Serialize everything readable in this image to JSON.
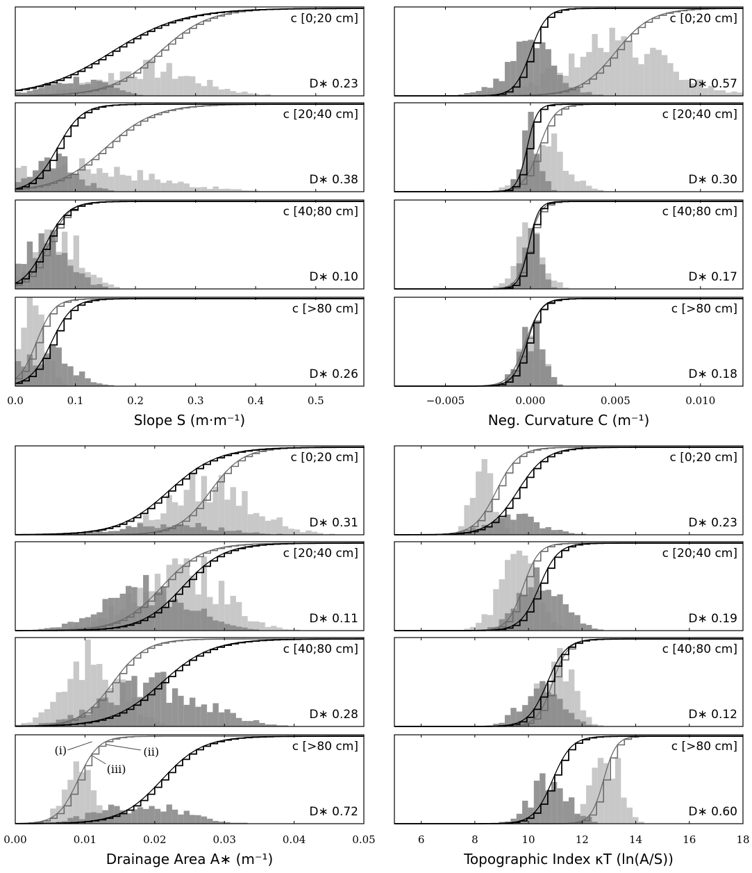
{
  "chart_data": [
    {
      "type": "histogram",
      "group": "slope",
      "xlabel": "Slope S (m·m⁻¹)",
      "xlim": [
        0,
        0.58
      ],
      "xticks": [
        0.0,
        0.1,
        0.2,
        0.3,
        0.4,
        0.5
      ],
      "xtick_labels": [
        "0.0",
        "0.1",
        "0.2",
        "0.3",
        "0.4",
        "0.5"
      ],
      "panels": [
        {
          "class_label": "c [0;20 cm]",
          "d_stat": "D∗ 0.23",
          "light": {
            "center": 0.22,
            "spread": 0.08,
            "peak": 0.3
          },
          "dark": {
            "center": 0.1,
            "spread": 0.05,
            "peak": 0.18
          },
          "cdf_light": {
            "center": 0.24,
            "spread": 0.07
          },
          "cdf_dark": {
            "center": 0.16,
            "spread": 0.1
          }
        },
        {
          "class_label": "c [20;40 cm]",
          "d_stat": "D∗ 0.38",
          "light": {
            "center": 0.1,
            "spread": 0.12,
            "peak": 0.28
          },
          "dark": {
            "center": 0.06,
            "spread": 0.04,
            "peak": 0.34
          },
          "cdf_light": {
            "center": 0.15,
            "spread": 0.07
          },
          "cdf_dark": {
            "center": 0.07,
            "spread": 0.035
          }
        },
        {
          "class_label": "c [40;80 cm]",
          "d_stat": "D∗ 0.10",
          "light": {
            "center": 0.07,
            "spread": 0.04,
            "peak": 0.6
          },
          "dark": {
            "center": 0.05,
            "spread": 0.04,
            "peak": 0.5
          },
          "cdf_light": {
            "center": 0.055,
            "spread": 0.03
          },
          "cdf_dark": {
            "center": 0.05,
            "spread": 0.032
          }
        },
        {
          "class_label": "c [>80 cm]",
          "d_stat": "D∗ 0.26",
          "light": {
            "center": 0.03,
            "spread": 0.02,
            "peak": 0.8
          },
          "dark": {
            "center": 0.05,
            "spread": 0.04,
            "peak": 0.4
          },
          "cdf_light": {
            "center": 0.035,
            "spread": 0.025
          },
          "cdf_dark": {
            "center": 0.06,
            "spread": 0.03
          }
        }
      ]
    },
    {
      "type": "histogram",
      "group": "curvature",
      "xlabel": "Neg. Curvature C (m⁻¹)",
      "xlim": [
        -0.008,
        0.0125
      ],
      "xticks": [
        -0.005,
        0.0,
        0.005,
        0.01
      ],
      "xtick_labels": [
        "−0.005",
        "0.000",
        "0.005",
        "0.010"
      ],
      "panels": [
        {
          "class_label": "c [0;20 cm]",
          "d_stat": "D∗ 0.57",
          "light": {
            "center": 0.005,
            "spread": 0.003,
            "peak": 0.55
          },
          "dark": {
            "center": 0.0,
            "spread": 0.0015,
            "peak": 0.5
          },
          "cdf_light": {
            "center": 0.005,
            "spread": 0.0018
          },
          "cdf_dark": {
            "center": 0.0,
            "spread": 0.0008
          }
        },
        {
          "class_label": "c [20;40 cm]",
          "d_stat": "D∗ 0.30",
          "light": {
            "center": 0.001,
            "spread": 0.0012,
            "peak": 0.5
          },
          "dark": {
            "center": 0.0,
            "spread": 0.0005,
            "peak": 0.85
          },
          "cdf_light": {
            "center": 0.0005,
            "spread": 0.0008
          },
          "cdf_dark": {
            "center": -0.0002,
            "spread": 0.0005
          }
        },
        {
          "class_label": "c [40;80 cm]",
          "d_stat": "D∗ 0.17",
          "light": {
            "center": 0.0,
            "spread": 0.0008,
            "peak": 0.6
          },
          "dark": {
            "center": 0.0,
            "spread": 0.0005,
            "peak": 0.8
          },
          "cdf_light": {
            "center": -0.0001,
            "spread": 0.0006
          },
          "cdf_dark": {
            "center": -0.0001,
            "spread": 0.0005
          }
        },
        {
          "class_label": "c [>80 cm]",
          "d_stat": "D∗ 0.18",
          "light": {
            "center": 0.0001,
            "spread": 0.0006,
            "peak": 0.75
          },
          "dark": {
            "center": 0.0,
            "spread": 0.0007,
            "peak": 0.6
          },
          "cdf_light": {
            "center": -0.0003,
            "spread": 0.0008
          },
          "cdf_dark": {
            "center": -0.0002,
            "spread": 0.0007
          }
        }
      ]
    },
    {
      "type": "histogram",
      "group": "drainage",
      "xlabel": "Drainage Area A∗ (m⁻¹)",
      "xlim": [
        0.0,
        0.05
      ],
      "xticks": [
        0.0,
        0.01,
        0.02,
        0.03,
        0.04,
        0.05
      ],
      "xtick_labels": [
        "0.00",
        "0.01",
        "0.02",
        "0.03",
        "0.04",
        "0.05"
      ],
      "panels": [
        {
          "class_label": "c [0;20 cm]",
          "d_stat": "D∗ 0.31",
          "light": {
            "center": 0.028,
            "spread": 0.006,
            "peak": 0.55
          },
          "dark": {
            "center": 0.022,
            "spread": 0.007,
            "peak": 0.12
          },
          "cdf_light": {
            "center": 0.028,
            "spread": 0.004
          },
          "cdf_dark": {
            "center": 0.022,
            "spread": 0.006
          }
        },
        {
          "class_label": "c [20;40 cm]",
          "d_stat": "D∗ 0.11",
          "light": {
            "center": 0.023,
            "spread": 0.006,
            "peak": 0.75
          },
          "dark": {
            "center": 0.019,
            "spread": 0.006,
            "peak": 0.45
          },
          "cdf_light": {
            "center": 0.021,
            "spread": 0.005
          },
          "cdf_dark": {
            "center": 0.024,
            "spread": 0.005
          }
        },
        {
          "class_label": "c [40;80 cm]",
          "d_stat": "D∗ 0.28",
          "light": {
            "center": 0.011,
            "spread": 0.004,
            "peak": 0.75
          },
          "dark": {
            "center": 0.02,
            "spread": 0.007,
            "peak": 0.45
          },
          "cdf_light": {
            "center": 0.014,
            "spread": 0.004
          },
          "cdf_dark": {
            "center": 0.021,
            "spread": 0.006
          }
        },
        {
          "class_label": "c [>80 cm]",
          "d_stat": "D∗ 0.72",
          "light": {
            "center": 0.009,
            "spread": 0.002,
            "peak": 0.7
          },
          "dark": {
            "center": 0.018,
            "spread": 0.006,
            "peak": 0.2
          },
          "cdf_light": {
            "center": 0.009,
            "spread": 0.0025
          },
          "cdf_dark": {
            "center": 0.021,
            "spread": 0.005
          }
        }
      ],
      "annotations": [
        "(i)",
        "(ii)",
        "(iii)"
      ]
    },
    {
      "type": "histogram",
      "group": "topographic",
      "xlabel": "Topographic Index κT (ln(A/S))",
      "xlim": [
        5,
        18
      ],
      "xticks": [
        6,
        8,
        10,
        12,
        14,
        16,
        18
      ],
      "xtick_labels": [
        "6",
        "8",
        "10",
        "12",
        "14",
        "16",
        "18"
      ],
      "panels": [
        {
          "class_label": "c [0;20 cm]",
          "d_stat": "D∗ 0.23",
          "light": {
            "center": 8.3,
            "spread": 0.4,
            "peak": 0.8
          },
          "dark": {
            "center": 9.5,
            "spread": 1.0,
            "peak": 0.2
          },
          "cdf_light": {
            "center": 8.8,
            "spread": 0.7
          },
          "cdf_dark": {
            "center": 9.6,
            "spread": 0.9
          }
        },
        {
          "class_label": "c [20;40 cm]",
          "d_stat": "D∗ 0.19",
          "light": {
            "center": 9.6,
            "spread": 0.7,
            "peak": 0.8
          },
          "dark": {
            "center": 10.5,
            "spread": 0.8,
            "peak": 0.55
          },
          "cdf_light": {
            "center": 9.8,
            "spread": 0.5
          },
          "cdf_dark": {
            "center": 10.4,
            "spread": 0.6
          }
        },
        {
          "class_label": "c [40;80 cm]",
          "d_stat": "D∗ 0.12",
          "light": {
            "center": 11.0,
            "spread": 0.6,
            "peak": 0.8
          },
          "dark": {
            "center": 10.5,
            "spread": 0.7,
            "peak": 0.5
          },
          "cdf_light": {
            "center": 10.9,
            "spread": 0.5
          },
          "cdf_dark": {
            "center": 10.7,
            "spread": 0.6
          }
        },
        {
          "class_label": "c [>80 cm]",
          "d_stat": "D∗ 0.60",
          "light": {
            "center": 12.9,
            "spread": 0.5,
            "peak": 0.8
          },
          "dark": {
            "center": 10.8,
            "spread": 0.7,
            "peak": 0.5
          },
          "cdf_light": {
            "center": 12.8,
            "spread": 0.4
          },
          "cdf_dark": {
            "center": 10.9,
            "spread": 0.6
          }
        }
      ]
    }
  ],
  "colors": {
    "light_hist": "#c8c8c8",
    "dark_hist": "#8a8a8a",
    "black_cdf": "#000000",
    "grey_cdf": "#6a6a6a"
  }
}
